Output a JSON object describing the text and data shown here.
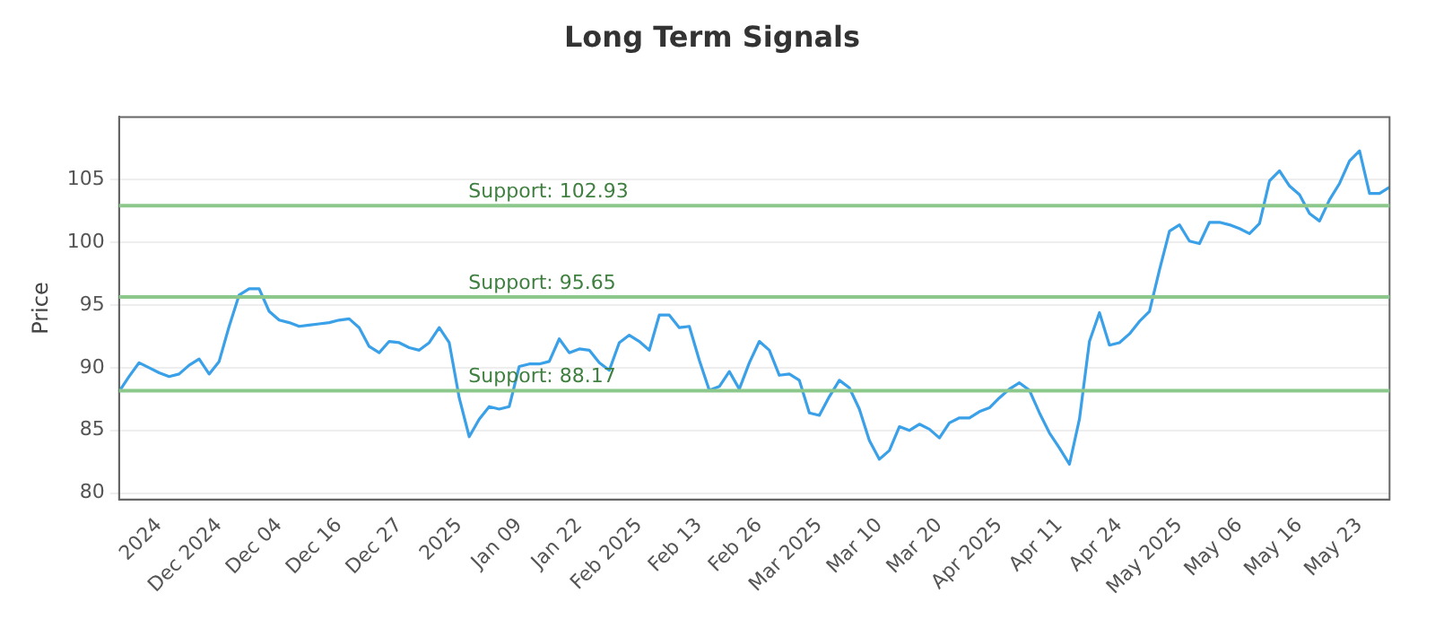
{
  "chart_data": {
    "type": "line",
    "title": "Long Term Signals",
    "ylabel": "Price",
    "categories": [
      null,
      null,
      null,
      null,
      "2024",
      null,
      null,
      null,
      null,
      null,
      "Dec 2024",
      null,
      null,
      null,
      null,
      null,
      "Dec 04",
      null,
      null,
      null,
      null,
      null,
      "Dec 16",
      null,
      null,
      null,
      null,
      null,
      "Dec 27",
      null,
      null,
      null,
      null,
      null,
      "2025",
      null,
      null,
      null,
      null,
      null,
      "Jan 09",
      null,
      null,
      null,
      null,
      null,
      "Jan 22",
      null,
      null,
      null,
      null,
      null,
      "Feb 2025",
      null,
      null,
      null,
      null,
      null,
      "Feb 13",
      null,
      null,
      null,
      null,
      null,
      "Feb 26",
      null,
      null,
      null,
      null,
      null,
      "Mar 2025",
      null,
      null,
      null,
      null,
      null,
      "Mar 10",
      null,
      null,
      null,
      null,
      null,
      "Mar 20",
      null,
      null,
      null,
      null,
      null,
      "Apr 2025",
      null,
      null,
      null,
      null,
      null,
      "Apr 11",
      null,
      null,
      null,
      null,
      null,
      "Apr 24",
      null,
      null,
      null,
      null,
      null,
      "May 2025",
      null,
      null,
      null,
      null,
      null,
      "May 06",
      null,
      null,
      null,
      null,
      null,
      "May 16",
      null,
      null,
      null,
      null,
      null,
      "May 23",
      null,
      null,
      null
    ],
    "series": [
      {
        "color": "#3aa0e8",
        "values": [
          88.1,
          89.3,
          90.4,
          90.0,
          89.6,
          89.3,
          89.5,
          90.2,
          90.7,
          89.5,
          90.5,
          93.3,
          95.8,
          96.3,
          96.3,
          94.5,
          93.8,
          93.6,
          93.3,
          93.4,
          93.5,
          93.6,
          93.8,
          93.9,
          93.2,
          91.7,
          91.2,
          92.1,
          92.0,
          91.6,
          91.4,
          92.0,
          93.2,
          92.0,
          87.6,
          84.5,
          85.9,
          86.9,
          86.7,
          86.9,
          90.1,
          90.3,
          90.3,
          90.5,
          92.3,
          91.2,
          91.5,
          91.4,
          90.4,
          89.8,
          92.0,
          92.6,
          92.1,
          91.4,
          94.2,
          94.2,
          93.2,
          93.3,
          90.6,
          88.2,
          88.5,
          89.7,
          88.3,
          90.4,
          92.1,
          91.4,
          89.4,
          89.5,
          89.0,
          86.4,
          86.2,
          87.7,
          89.0,
          88.4,
          86.7,
          84.2,
          82.7,
          83.4,
          85.3,
          85.0,
          85.5,
          85.1,
          84.4,
          85.6,
          86.0,
          86.0,
          86.5,
          86.8,
          87.6,
          88.3,
          88.8,
          88.2,
          86.4,
          84.8,
          83.6,
          82.3,
          85.9,
          92.1,
          94.4,
          91.8,
          92.0,
          92.7,
          93.7,
          94.5,
          97.8,
          100.9,
          101.4,
          100.1,
          99.9,
          101.6,
          101.6,
          101.4,
          101.1,
          100.7,
          101.5,
          104.9,
          105.7,
          104.5,
          103.8,
          102.3,
          101.7,
          103.4,
          104.7,
          106.5,
          107.3,
          103.9,
          103.9,
          104.4
        ]
      }
    ],
    "ylim": [
      79.5,
      110
    ],
    "yticks": [
      80,
      85,
      90,
      95,
      100,
      105
    ],
    "grid": "y",
    "marker": "none",
    "line_style": "solid",
    "legend": false,
    "ref_lines": [
      {
        "axis": "y",
        "value": 102.93,
        "label": "Support: 102.93",
        "color": "#8cc88c"
      },
      {
        "axis": "y",
        "value": 95.65,
        "label": "Support: 95.65",
        "color": "#8cc88c"
      },
      {
        "axis": "y",
        "value": 88.17,
        "label": "Support: 88.17",
        "color": "#8cc88c"
      }
    ]
  }
}
